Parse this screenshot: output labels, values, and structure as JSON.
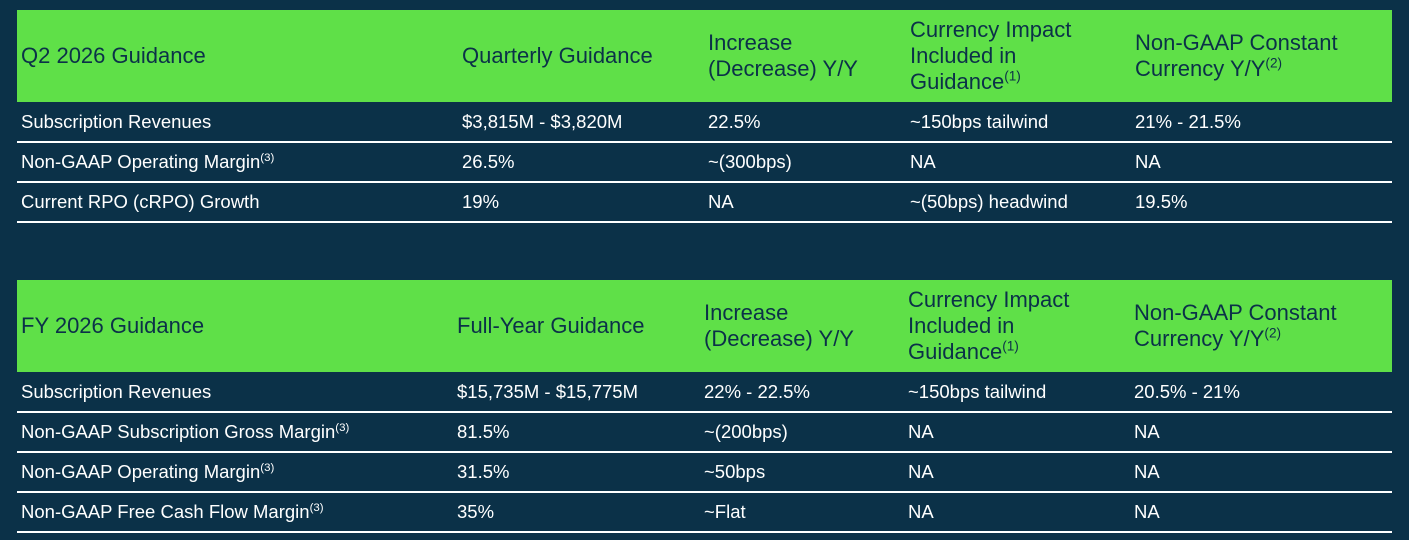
{
  "q2": {
    "headers": {
      "col1": "Q2 2026 Guidance",
      "col2": "Quarterly Guidance",
      "col3_line1": "Increase",
      "col3_line2": "(Decrease) Y/Y",
      "col4_line1": "Currency Impact",
      "col4_line2": "Included in",
      "col4_line3": "Guidance",
      "col4_sup": "(1)",
      "col5_line1": "Non-GAAP Constant",
      "col5_line2": "Currency Y/Y",
      "col5_sup": "(2)"
    },
    "rows": [
      {
        "label": "Subscription Revenues",
        "sup": "",
        "guidance": "$3,815M - $3,820M",
        "yoy": "22.5%",
        "currency": "~150bps tailwind",
        "constant": "21% - 21.5%"
      },
      {
        "label": "Non-GAAP Operating Margin",
        "sup": "(3)",
        "guidance": "26.5%",
        "yoy": "~(300bps)",
        "currency": "NA",
        "constant": "NA"
      },
      {
        "label": "Current RPO (cRPO) Growth",
        "sup": "",
        "guidance": "19%",
        "yoy": "NA",
        "currency": "~(50bps) headwind",
        "constant": "19.5%"
      }
    ]
  },
  "fy": {
    "headers": {
      "col1": "FY 2026 Guidance",
      "col2": "Full-Year Guidance",
      "col3_line1": "Increase",
      "col3_line2": "(Decrease) Y/Y",
      "col4_line1": "Currency Impact",
      "col4_line2": "Included in",
      "col4_line3": "Guidance",
      "col4_sup": "(1)",
      "col5_line1": "Non-GAAP Constant",
      "col5_line2": "Currency Y/Y",
      "col5_sup": "(2)"
    },
    "rows": [
      {
        "label": "Subscription Revenues",
        "sup": "",
        "guidance": "$15,735M - $15,775M",
        "yoy": "22% - 22.5%",
        "currency": "~150bps tailwind",
        "constant": "20.5% - 21%"
      },
      {
        "label": "Non-GAAP Subscription Gross Margin",
        "sup": "(3)",
        "guidance": "81.5%",
        "yoy": "~(200bps)",
        "currency": "NA",
        "constant": "NA"
      },
      {
        "label": "Non-GAAP Operating Margin",
        "sup": "(3)",
        "guidance": "31.5%",
        "yoy": "~50bps",
        "currency": "NA",
        "constant": "NA"
      },
      {
        "label": "Non-GAAP Free Cash Flow Margin",
        "sup": "(3)",
        "guidance": "35%",
        "yoy": "~Flat",
        "currency": "NA",
        "constant": "NA"
      }
    ]
  },
  "colors": {
    "background": "#0b3148",
    "header_fill": "#5fe048",
    "header_text": "#0b3148",
    "body_text": "#ffffff",
    "rule": "#ffffff"
  }
}
